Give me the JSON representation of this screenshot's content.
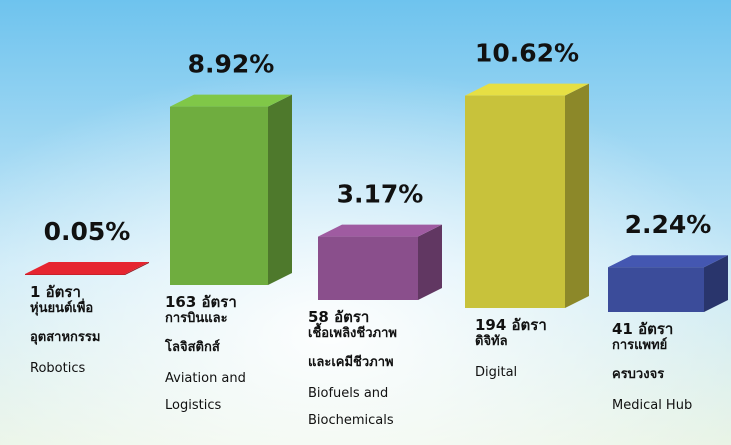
{
  "chart_data": {
    "type": "bar3d",
    "values": [
      0.05,
      8.92,
      3.17,
      10.62,
      2.24
    ],
    "value_labels": [
      "0.05%",
      "8.92%",
      "3.17%",
      "10.62%",
      "2.24%"
    ],
    "positions": [
      "1 อัตรา",
      "163 อัตรา",
      "58 อัตรา",
      "194 อัตรา",
      "41 อัตรา"
    ],
    "thai_names": [
      [
        "หุ่นยนต์เพื่อ",
        "อุตสาหกรรม"
      ],
      [
        "การบินและ",
        "โลจิสติกส์"
      ],
      [
        "เชื้อเพลิงชีวภาพ",
        "และเคมีชีวภาพ"
      ],
      [
        "ดิจิทัล"
      ],
      [
        "การแพทย์",
        "ครบวงจร"
      ]
    ],
    "english_names": [
      [
        "Robotics"
      ],
      [
        "Aviation and",
        "Logistics"
      ],
      [
        "Biofuels and",
        "Biochemicals"
      ],
      [
        "Digital"
      ],
      [
        "Medical Hub"
      ]
    ],
    "colors": [
      "#c8202a",
      "#6fad3f",
      "#8a4f8c",
      "#c8c23b",
      "#3b4c9a"
    ]
  }
}
